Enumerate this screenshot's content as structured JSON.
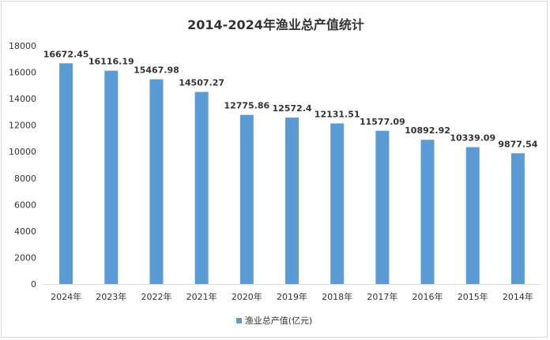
{
  "chart_data": {
    "type": "bar",
    "title": "2014-2024年渔业总产值统计",
    "xlabel": "",
    "ylabel": "",
    "categories": [
      "2024年",
      "2023年",
      "2022年",
      "2021年",
      "2020年",
      "2019年",
      "2018年",
      "2017年",
      "2016年",
      "2015年",
      "2014年"
    ],
    "series": [
      {
        "name": "渔业总产值(亿元)",
        "values": [
          16672.45,
          16116.19,
          15467.98,
          14507.27,
          12775.86,
          12572.4,
          12131.51,
          11577.09,
          10892.92,
          10339.09,
          9877.54
        ],
        "labels": [
          "16672.45",
          "16116.19",
          "15467.98",
          "14507.27",
          "12775.86",
          "12572.4",
          "12131.51",
          "11577.09",
          "10892.92",
          "10339.09",
          "9877.54"
        ],
        "color": "#5b9bd5"
      }
    ],
    "ylim": [
      0,
      18000
    ],
    "yticks": [
      0,
      2000,
      4000,
      6000,
      8000,
      10000,
      12000,
      14000,
      16000,
      18000
    ],
    "grid": false,
    "legend_position": "bottom"
  }
}
